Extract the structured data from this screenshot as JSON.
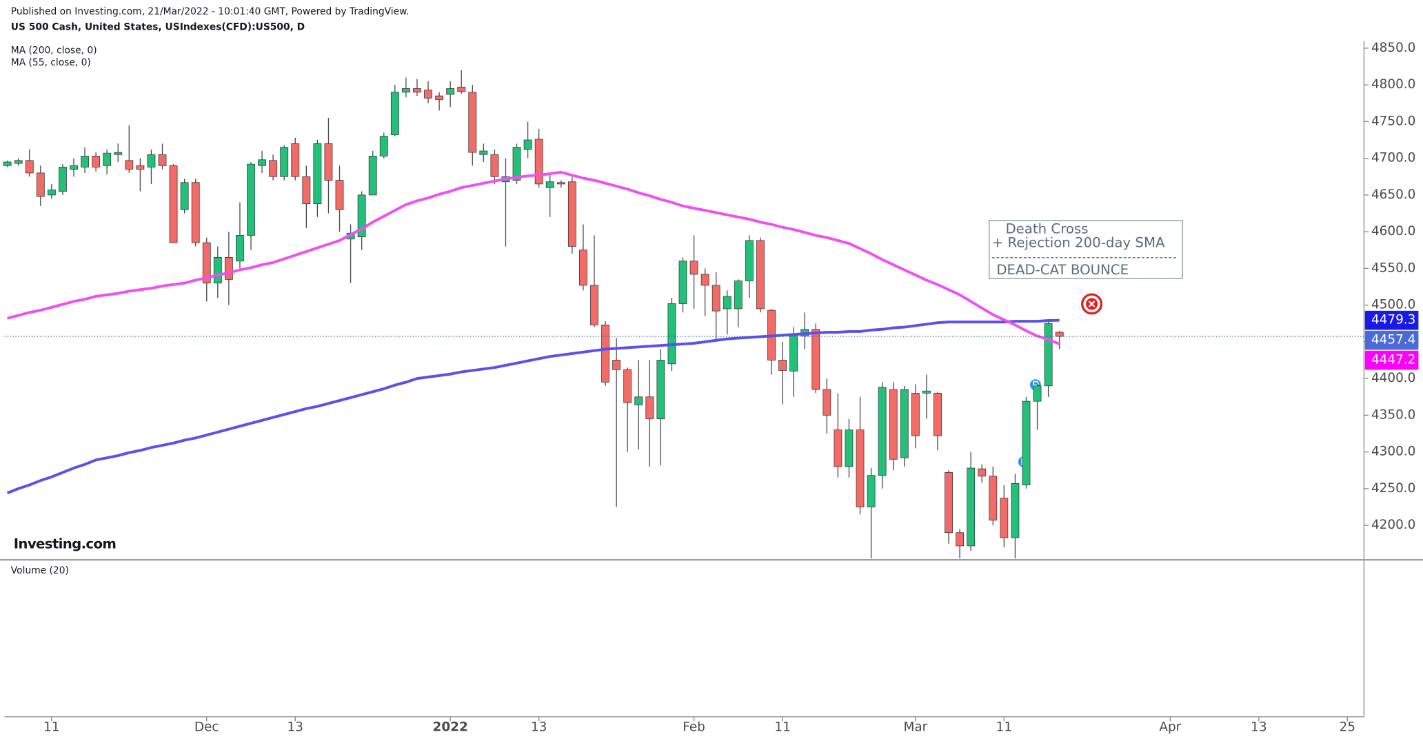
{
  "chart_data": {
    "type": "candlestick",
    "source": "Published on Investing.com, 21/Mar/2022 - 10:01:40 GMT, Powered by TradingView.",
    "title": "US 500 Cash, United States, USIndexes(CFD):US500, D",
    "logo": "Investing.com",
    "volume_label": "Volume (20)",
    "up_color": "#22c17a",
    "down_color": "#f26b66",
    "xlim": [
      -0.25,
      122.5
    ],
    "xticks": [
      {
        "value": 4,
        "label": "11"
      },
      {
        "value": 18,
        "label": "Dec"
      },
      {
        "value": 26,
        "label": "13"
      },
      {
        "value": 40,
        "label": "2022",
        "bold": true
      },
      {
        "value": 48,
        "label": "13"
      },
      {
        "value": 62,
        "label": "Feb"
      },
      {
        "value": 70,
        "label": "11"
      },
      {
        "value": 82,
        "label": "Mar"
      },
      {
        "value": 90,
        "label": "11"
      },
      {
        "value": 105,
        "label": "Apr"
      },
      {
        "value": 113,
        "label": "13"
      },
      {
        "value": 121,
        "label": "25"
      }
    ],
    "ylim": [
      4153,
      4860
    ],
    "yticks": [
      {
        "value": 4200,
        "label": "4200.0"
      },
      {
        "value": 4250,
        "label": "4250.0"
      },
      {
        "value": 4300,
        "label": "4300.0"
      },
      {
        "value": 4350,
        "label": "4350.0"
      },
      {
        "value": 4400,
        "label": "4400.0"
      },
      {
        "value": 4450,
        "label": "4450.0"
      },
      {
        "value": 4500,
        "label": "4500.0"
      },
      {
        "value": 4550,
        "label": "4550.0"
      },
      {
        "value": 4600,
        "label": "4600.0"
      },
      {
        "value": 4650,
        "label": "4650.0"
      },
      {
        "value": 4700,
        "label": "4700.0"
      },
      {
        "value": 4750,
        "label": "4750.0"
      },
      {
        "value": 4800,
        "label": "4800.0"
      },
      {
        "value": 4850,
        "label": "4850.0"
      }
    ],
    "grid": false,
    "open": [
      4690,
      4693,
      4697,
      4680,
      4650,
      4655,
      4685,
      4688,
      4703,
      4690,
      4705,
      4697,
      4690,
      4688,
      4705,
      4690,
      4630,
      4667,
      4585,
      4530,
      4565,
      4560,
      4595,
      4690,
      4697,
      4675,
      4720,
      4675,
      4638,
      4720,
      4670,
      4590,
      4593,
      4650,
      4703,
      4732,
      4790,
      4795,
      4793,
      4785,
      4787,
      4797,
      4790,
      4705,
      4705,
      4668,
      4670,
      4712,
      4726,
      4660,
      4667,
      4668,
      4575,
      4527,
      4473,
      4425,
      4412,
      4364,
      4375,
      4345,
      4420,
      4502,
      4560,
      4542,
      4527,
      4495,
      4495,
      4533,
      4588,
      4493,
      4425,
      4410,
      4458,
      4467,
      4385,
      4330,
      4280,
      4330,
      4225,
      4268,
      4385,
      4292,
      4380,
      4380,
      4380,
      4272,
      4190,
      4172,
      4277,
      4267,
      4237,
      4183,
      4255,
      4369,
      4390,
      4463
    ],
    "high": [
      4697,
      4700,
      4712,
      4690,
      4665,
      4692,
      4700,
      4715,
      4708,
      4712,
      4720,
      4745,
      4700,
      4712,
      4720,
      4692,
      4672,
      4672,
      4592,
      4580,
      4600,
      4640,
      4695,
      4710,
      4705,
      4718,
      4728,
      4690,
      4725,
      4755,
      4690,
      4610,
      4655,
      4710,
      4735,
      4800,
      4810,
      4808,
      4805,
      4790,
      4805,
      4820,
      4800,
      4720,
      4712,
      4700,
      4720,
      4750,
      4740,
      4680,
      4670,
      4675,
      4610,
      4595,
      4478,
      4455,
      4415,
      4425,
      4425,
      4440,
      4510,
      4565,
      4595,
      4550,
      4545,
      4520,
      4535,
      4595,
      4592,
      4495,
      4450,
      4470,
      4490,
      4475,
      4400,
      4380,
      4345,
      4375,
      4278,
      4395,
      4395,
      4390,
      4392,
      4405,
      4382,
      4275,
      4195,
      4300,
      4283,
      4280,
      4255,
      4270,
      4375,
      4393,
      4478,
      4465
    ],
    "low": [
      4688,
      4690,
      4675,
      4635,
      4645,
      4650,
      4675,
      4680,
      4682,
      4678,
      4695,
      4680,
      4655,
      4665,
      4685,
      4585,
      4625,
      4580,
      4505,
      4510,
      4500,
      4550,
      4575,
      4680,
      4670,
      4670,
      4670,
      4605,
      4620,
      4625,
      4600,
      4530,
      4575,
      4650,
      4700,
      4730,
      4783,
      4785,
      4775,
      4765,
      4770,
      4788,
      4690,
      4695,
      4665,
      4580,
      4665,
      4700,
      4660,
      4620,
      4660,
      4570,
      4520,
      4470,
      4390,
      4225,
      4300,
      4303,
      4280,
      4282,
      4410,
      4490,
      4495,
      4485,
      4450,
      4460,
      4470,
      4510,
      4490,
      4405,
      4365,
      4375,
      4440,
      4380,
      4325,
      4265,
      4265,
      4215,
      4155,
      4250,
      4275,
      4280,
      4305,
      4345,
      4302,
      4175,
      4155,
      4165,
      4258,
      4200,
      4170,
      4155,
      4250,
      4330,
      4375,
      4440
    ],
    "close": [
      4695,
      4697,
      4680,
      4648,
      4657,
      4688,
      4690,
      4703,
      4688,
      4707,
      4708,
      4685,
      4685,
      4705,
      4690,
      4585,
      4667,
      4585,
      4530,
      4565,
      4535,
      4595,
      4692,
      4698,
      4675,
      4715,
      4675,
      4638,
      4720,
      4670,
      4630,
      4598,
      4650,
      4703,
      4730,
      4790,
      4795,
      4790,
      4782,
      4780,
      4795,
      4791,
      4708,
      4710,
      4675,
      4675,
      4715,
      4725,
      4665,
      4668,
      4665,
      4580,
      4527,
      4473,
      4395,
      4412,
      4367,
      4375,
      4345,
      4425,
      4502,
      4560,
      4542,
      4527,
      4492,
      4512,
      4533,
      4588,
      4495,
      4425,
      4411,
      4460,
      4467,
      4385,
      4350,
      4280,
      4330,
      4225,
      4268,
      4388,
      4290,
      4385,
      4322,
      4383,
      4322,
      4190,
      4172,
      4278,
      4267,
      4207,
      4183,
      4257,
      4369,
      4390,
      4475,
      4457.4
    ],
    "lines": [
      {
        "name": "MA (200, close, 0)",
        "color": "#5a50f0",
        "label_color": "#1a1ae6",
        "values": [
          4244,
          4250,
          4255,
          4261,
          4266,
          4272,
          4278,
          4283,
          4289,
          4292,
          4295,
          4299,
          4302,
          4306,
          4309,
          4312,
          4316,
          4319,
          4323,
          4327,
          4331,
          4335,
          4339,
          4343,
          4347,
          4351,
          4355,
          4359,
          4362,
          4366,
          4370,
          4374,
          4378,
          4382,
          4386,
          4391,
          4395,
          4400,
          4402,
          4404,
          4406,
          4409,
          4411,
          4413,
          4415,
          4418,
          4421,
          4424,
          4427,
          4430,
          4432,
          4434,
          4436,
          4438,
          4440,
          4441,
          4442,
          4443,
          4444,
          4445,
          4446,
          4447,
          4448,
          4450,
          4452,
          4454,
          4455,
          4456,
          4457,
          4458,
          4459,
          4460,
          4461,
          4462,
          4463,
          4463,
          4464,
          4464,
          4466,
          4467,
          4469,
          4470,
          4472,
          4474,
          4476,
          4477,
          4477,
          4477,
          4477,
          4477,
          4477,
          4478,
          4478,
          4478,
          4479,
          4479.3
        ]
      },
      {
        "name": "MA (55, close, 0)",
        "color": "#f050f0",
        "label_color": "#ff00ff",
        "values": [
          4482,
          4486,
          4490,
          4493,
          4497,
          4501,
          4505,
          4508,
          4512,
          4514,
          4516,
          4519,
          4521,
          4523,
          4526,
          4528,
          4530,
          4534,
          4537,
          4541,
          4544,
          4548,
          4551,
          4555,
          4558,
          4563,
          4568,
          4573,
          4578,
          4583,
          4588,
          4596,
          4604,
          4613,
          4621,
          4629,
          4637,
          4642,
          4646,
          4651,
          4655,
          4660,
          4663,
          4666,
          4669,
          4672,
          4674,
          4676,
          4677,
          4679,
          4681,
          4677,
          4673,
          4670,
          4666,
          4662,
          4658,
          4653,
          4649,
          4644,
          4640,
          4635,
          4632,
          4629,
          4626,
          4623,
          4620,
          4617,
          4613,
          4610,
          4606,
          4603,
          4599,
          4595,
          4592,
          4588,
          4584,
          4577,
          4570,
          4562,
          4555,
          4548,
          4541,
          4534,
          4528,
          4521,
          4514,
          4505,
          4496,
          4487,
          4480,
          4473,
          4465,
          4458,
          4453,
          4447.2
        ]
      }
    ],
    "last_price_color": "#4a6ad8",
    "annotation": [
      "Death Cross",
      "+ Rejection 200-day SMA",
      "DEAD-CAT BOUNCE"
    ]
  }
}
